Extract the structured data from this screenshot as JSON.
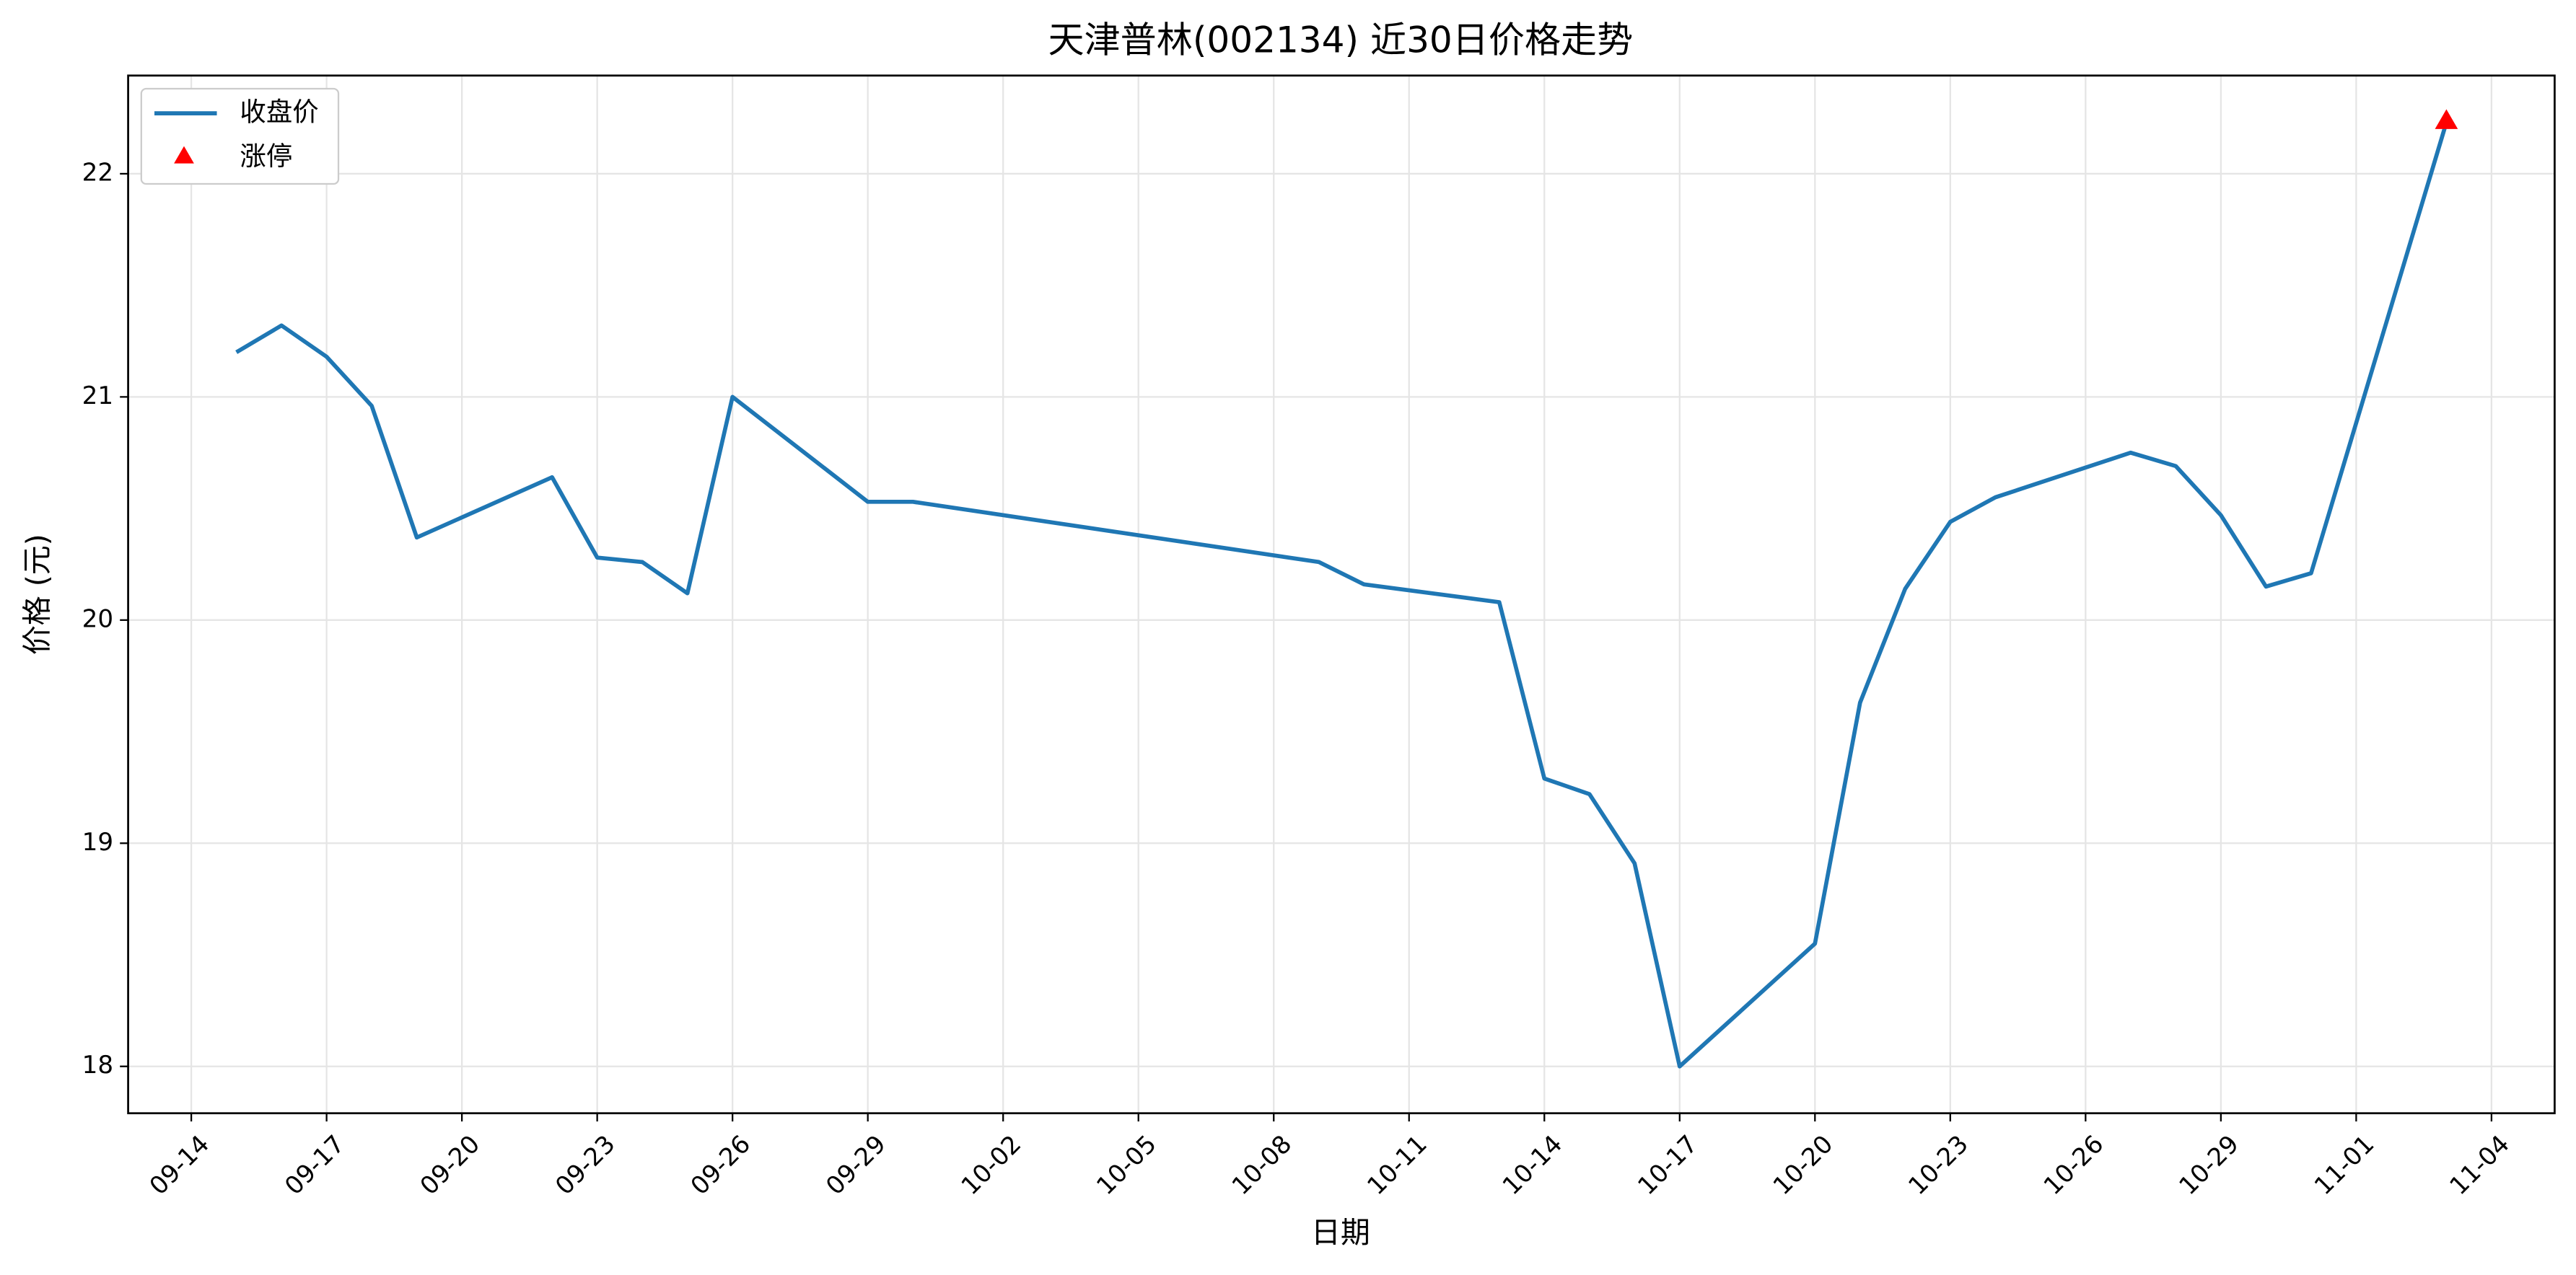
{
  "chart_data": {
    "type": "line",
    "title": "天津普林(002134) 近30日价格走势",
    "xlabel": "日期",
    "ylabel": "价格 (元)",
    "x": [
      "09-15",
      "09-16",
      "09-17",
      "09-18",
      "09-19",
      "09-22",
      "09-23",
      "09-24",
      "09-25",
      "09-26",
      "09-29",
      "09-30",
      "10-09",
      "10-10",
      "10-13",
      "10-14",
      "10-15",
      "10-16",
      "10-17",
      "10-20",
      "10-21",
      "10-22",
      "10-23",
      "10-24",
      "10-27",
      "10-28",
      "10-29",
      "10-30",
      "10-31",
      "11-03"
    ],
    "series": [
      {
        "name": "收盘价",
        "color": "#1f77b4",
        "values": [
          21.2,
          21.32,
          21.18,
          20.96,
          20.37,
          20.64,
          20.28,
          20.26,
          20.12,
          21.0,
          20.53,
          20.53,
          20.26,
          20.16,
          20.08,
          19.29,
          19.22,
          18.91,
          18.0,
          18.55,
          19.63,
          20.14,
          20.44,
          20.55,
          20.75,
          20.69,
          20.47,
          20.15,
          20.21,
          22.23
        ]
      },
      {
        "name": "涨停",
        "type": "scatter",
        "marker": "triangle",
        "color": "#ff0000",
        "x": [
          "11-03"
        ],
        "values": [
          22.23
        ]
      }
    ],
    "xlim": [
      "09-12.6",
      "11-05.4"
    ],
    "xticks": [
      "09-14",
      "09-17",
      "09-20",
      "09-23",
      "09-26",
      "09-29",
      "10-02",
      "10-05",
      "10-08",
      "10-11",
      "10-14",
      "10-17",
      "10-20",
      "10-23",
      "10-26",
      "10-29",
      "11-01",
      "11-04"
    ],
    "ylim": [
      17.79,
      22.44
    ],
    "yticks": [
      18,
      19,
      20,
      21,
      22
    ],
    "grid": true,
    "legend": "upper left"
  }
}
